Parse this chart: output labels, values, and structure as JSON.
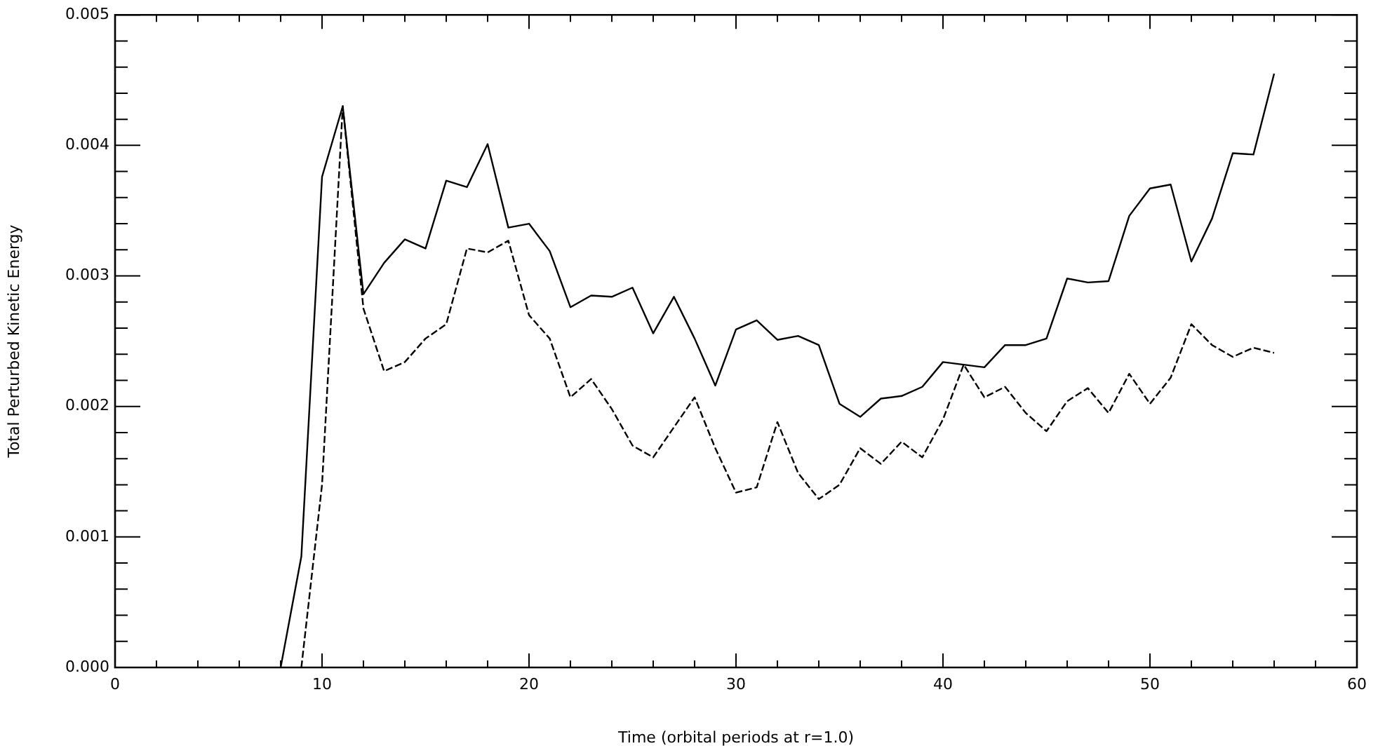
{
  "chart_data": {
    "type": "line",
    "xlabel": "Time (orbital periods at r=1.0)",
    "ylabel": "Total Perturbed Kinetic Energy",
    "xlim": [
      0,
      60
    ],
    "ylim": [
      0,
      0.005
    ],
    "xticks": [
      0,
      {
        "value": 2,
        "label": null
      },
      {
        "value": 4,
        "label": null
      },
      {
        "value": 6,
        "label": null
      },
      {
        "value": 8,
        "label": null
      },
      10,
      {
        "value": 12,
        "label": null
      },
      {
        "value": 14,
        "label": null
      },
      {
        "value": 16,
        "label": null
      },
      {
        "value": 18,
        "label": null
      },
      20,
      {
        "value": 22,
        "label": null
      },
      {
        "value": 24,
        "label": null
      },
      {
        "value": 26,
        "label": null
      },
      {
        "value": 28,
        "label": null
      },
      30,
      {
        "value": 32,
        "label": null
      },
      {
        "value": 34,
        "label": null
      },
      {
        "value": 36,
        "label": null
      },
      {
        "value": 38,
        "label": null
      },
      40,
      {
        "value": 42,
        "label": null
      },
      {
        "value": 44,
        "label": null
      },
      {
        "value": 46,
        "label": null
      },
      {
        "value": 48,
        "label": null
      },
      50,
      {
        "value": 52,
        "label": null
      },
      {
        "value": 54,
        "label": null
      },
      {
        "value": 56,
        "label": null
      },
      {
        "value": 58,
        "label": null
      },
      60
    ],
    "yticks": [
      {
        "value": 0,
        "label": "0.000"
      },
      {
        "value": 0.0002,
        "label": null
      },
      {
        "value": 0.0004,
        "label": null
      },
      {
        "value": 0.0006,
        "label": null
      },
      {
        "value": 0.0008,
        "label": null
      },
      {
        "value": 0.001,
        "label": "0.001"
      },
      {
        "value": 0.0012,
        "label": null
      },
      {
        "value": 0.0014,
        "label": null
      },
      {
        "value": 0.0016,
        "label": null
      },
      {
        "value": 0.0018,
        "label": null
      },
      {
        "value": 0.002,
        "label": "0.002"
      },
      {
        "value": 0.0022,
        "label": null
      },
      {
        "value": 0.0024,
        "label": null
      },
      {
        "value": 0.0026,
        "label": null
      },
      {
        "value": 0.0028,
        "label": null
      },
      {
        "value": 0.003,
        "label": "0.003"
      },
      {
        "value": 0.0032,
        "label": null
      },
      {
        "value": 0.0034,
        "label": null
      },
      {
        "value": 0.0036,
        "label": null
      },
      {
        "value": 0.0038,
        "label": null
      },
      {
        "value": 0.004,
        "label": "0.004"
      },
      {
        "value": 0.0042,
        "label": null
      },
      {
        "value": 0.0044,
        "label": null
      },
      {
        "value": 0.0046,
        "label": null
      },
      {
        "value": 0.0048,
        "label": null
      },
      {
        "value": 0.005,
        "label": "0.005"
      }
    ],
    "grid": false,
    "legend": false,
    "marker": "none",
    "series": [
      {
        "color": "#000000",
        "line_style": "solid",
        "x": [
          8,
          9,
          10,
          11,
          12,
          13,
          14,
          15,
          16,
          17,
          18,
          19,
          20,
          21,
          22,
          23,
          24,
          25,
          26,
          27,
          28,
          29,
          30,
          31,
          32,
          33,
          34,
          35,
          36,
          37,
          38,
          39,
          40,
          41,
          42,
          43,
          44,
          45,
          46,
          47,
          48,
          49,
          50,
          51,
          52,
          53,
          54,
          55,
          56
        ],
        "values": [
          0,
          0.00085,
          0.00376,
          0.0043,
          0.00286,
          0.0031,
          0.00328,
          0.00321,
          0.00373,
          0.00368,
          0.00401,
          0.00337,
          0.0034,
          0.00319,
          0.00276,
          0.00285,
          0.00284,
          0.00291,
          0.00256,
          0.00284,
          0.00252,
          0.00216,
          0.00259,
          0.00266,
          0.00251,
          0.00254,
          0.00247,
          0.00202,
          0.00192,
          0.00206,
          0.00208,
          0.00215,
          0.00234,
          0.00232,
          0.0023,
          0.00247,
          0.00247,
          0.00252,
          0.00298,
          0.00295,
          0.00296,
          0.00346,
          0.00367,
          0.0037,
          0.00311,
          0.00344,
          0.00394,
          0.00393,
          0.00455
        ]
      },
      {
        "color": "#000000",
        "line_style": "dashed",
        "x": [
          9,
          10,
          11,
          12,
          13,
          14,
          15,
          16,
          17,
          18,
          19,
          20,
          21,
          22,
          23,
          24,
          25,
          26,
          27,
          28,
          29,
          30,
          31,
          32,
          33,
          34,
          35,
          36,
          37,
          38,
          39,
          40,
          41,
          42,
          43,
          44,
          45,
          46,
          47,
          48,
          49,
          50,
          51,
          52,
          53,
          54,
          55,
          56
        ],
        "values": [
          0,
          0.0014,
          0.0043,
          0.00275,
          0.00227,
          0.00234,
          0.00252,
          0.00263,
          0.00321,
          0.00318,
          0.00327,
          0.0027,
          0.00252,
          0.00207,
          0.00221,
          0.00198,
          0.0017,
          0.00161,
          0.00184,
          0.00207,
          0.00168,
          0.00134,
          0.00138,
          0.00188,
          0.00149,
          0.00129,
          0.0014,
          0.00168,
          0.00156,
          0.00173,
          0.00161,
          0.0019,
          0.00232,
          0.00207,
          0.00215,
          0.00195,
          0.00181,
          0.00204,
          0.00214,
          0.00195,
          0.00225,
          0.00202,
          0.00222,
          0.00263,
          0.00247,
          0.00238,
          0.00245,
          0.00241
        ]
      }
    ]
  }
}
